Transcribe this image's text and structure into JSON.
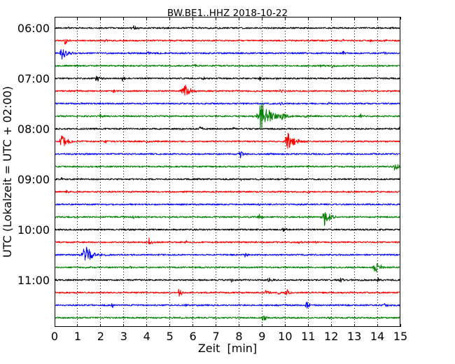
{
  "chart_data": {
    "type": "line",
    "title": "BW.BE1..HHZ 2018-10-22",
    "xlabel": "Zeit  [min]",
    "ylabel": "UTC (Lokalzeit = UTC + 02:00)",
    "xlim": [
      0,
      15
    ],
    "xticks": [
      0,
      1,
      2,
      3,
      4,
      5,
      6,
      7,
      8,
      9,
      10,
      11,
      12,
      13,
      14,
      15
    ],
    "yticks": [
      "06:00",
      "07:00",
      "08:00",
      "09:00",
      "10:00",
      "11:00"
    ],
    "grid": true,
    "series": [
      {
        "start": "06:00",
        "color": "#000000",
        "events": [
          {
            "x": 3.3,
            "amp": 0.12
          },
          {
            "x": 3.45,
            "amp": 0.3
          },
          {
            "x": 0.6,
            "amp": 0.08
          }
        ]
      },
      {
        "start": "06:15",
        "color": "#ff0000",
        "events": [
          {
            "x": 0.45,
            "amp": 0.35
          },
          {
            "x": 2.2,
            "amp": 0.14
          },
          {
            "x": 12.5,
            "amp": 0.14
          },
          {
            "x": 13.7,
            "amp": 0.12
          },
          {
            "x": 14.3,
            "amp": 0.12
          }
        ]
      },
      {
        "start": "06:30",
        "color": "#0000ff",
        "events": [
          {
            "x": 0.3,
            "amp": 0.6
          },
          {
            "x": 4.0,
            "amp": 0.2
          },
          {
            "x": 12.5,
            "amp": 0.2
          },
          {
            "x": 14.3,
            "amp": 0.12
          }
        ]
      },
      {
        "start": "06:45",
        "color": "#008000",
        "events": [
          {
            "x": 6.1,
            "amp": 0.1
          },
          {
            "x": 11.55,
            "amp": 0.18
          },
          {
            "x": 12.05,
            "amp": 0.15
          }
        ]
      },
      {
        "start": "07:00",
        "color": "#000000",
        "events": [
          {
            "x": 1.82,
            "amp": 0.35
          },
          {
            "x": 2.95,
            "amp": 0.2
          },
          {
            "x": 6.45,
            "amp": 0.15
          },
          {
            "x": 8.9,
            "amp": 0.2
          },
          {
            "x": 9.6,
            "amp": 0.14
          }
        ]
      },
      {
        "start": "07:15",
        "color": "#ff0000",
        "events": [
          {
            "x": 2.55,
            "amp": 0.2
          },
          {
            "x": 3.95,
            "amp": 0.12
          },
          {
            "x": 5.6,
            "amp": 0.72
          },
          {
            "x": 8.7,
            "amp": 0.12
          },
          {
            "x": 9.8,
            "amp": 0.2
          }
        ]
      },
      {
        "start": "07:30",
        "color": "#0000ff",
        "events": [
          {
            "x": 1.9,
            "amp": 0.12
          },
          {
            "x": 9.8,
            "amp": 0.15
          },
          {
            "x": 11.9,
            "amp": 0.1
          }
        ]
      },
      {
        "start": "07:45",
        "color": "#008000",
        "events": [
          {
            "x": 1.97,
            "amp": 0.22
          },
          {
            "x": 8.95,
            "amp": 1.35
          },
          {
            "x": 9.87,
            "amp": 0.3
          },
          {
            "x": 10.85,
            "amp": 0.12
          },
          {
            "x": 13.27,
            "amp": 0.2
          }
        ]
      },
      {
        "start": "08:00",
        "color": "#000000",
        "events": [
          {
            "x": 5.5,
            "amp": 0.1
          },
          {
            "x": 6.3,
            "amp": 0.22
          },
          {
            "x": 7.75,
            "amp": 0.22
          },
          {
            "x": 14.95,
            "amp": 0.2
          }
        ]
      },
      {
        "start": "08:15",
        "color": "#ff0000",
        "events": [
          {
            "x": 0.3,
            "amp": 0.7
          },
          {
            "x": 2.2,
            "amp": 0.12
          },
          {
            "x": 4.0,
            "amp": 0.12
          },
          {
            "x": 10.1,
            "amp": 0.88
          }
        ]
      },
      {
        "start": "08:30",
        "color": "#0000ff",
        "events": [
          {
            "x": 1.3,
            "amp": 0.1
          },
          {
            "x": 8.05,
            "amp": 0.3
          },
          {
            "x": 13.7,
            "amp": 0.12
          }
        ]
      },
      {
        "start": "08:45",
        "color": "#008000",
        "events": [
          {
            "x": 11.0,
            "amp": 0.1
          },
          {
            "x": 14.75,
            "amp": 0.45
          }
        ]
      },
      {
        "start": "09:00",
        "color": "#000000",
        "events": [
          {
            "x": 0.3,
            "amp": 0.2
          },
          {
            "x": 8.1,
            "amp": 0.12
          },
          {
            "x": 10.0,
            "amp": 0.12
          }
        ]
      },
      {
        "start": "09:15",
        "color": "#ff0000",
        "events": [
          {
            "x": 0.52,
            "amp": 0.2
          },
          {
            "x": 11.0,
            "amp": 0.15
          },
          {
            "x": 14.0,
            "amp": 0.12
          }
        ]
      },
      {
        "start": "09:30",
        "color": "#0000ff",
        "events": [
          {
            "x": 4.0,
            "amp": 0.1
          },
          {
            "x": 8.87,
            "amp": 0.1
          }
        ]
      },
      {
        "start": "09:45",
        "color": "#008000",
        "events": [
          {
            "x": 3.4,
            "amp": 0.18
          },
          {
            "x": 8.87,
            "amp": 0.25
          },
          {
            "x": 11.7,
            "amp": 0.72
          }
        ]
      },
      {
        "start": "10:00",
        "color": "#000000",
        "events": [
          {
            "x": 1.43,
            "amp": 0.12
          },
          {
            "x": 9.93,
            "amp": 0.22
          }
        ]
      },
      {
        "start": "10:15",
        "color": "#ff0000",
        "events": [
          {
            "x": 4.1,
            "amp": 0.3
          },
          {
            "x": 5.68,
            "amp": 0.15
          },
          {
            "x": 10.55,
            "amp": 0.2
          },
          {
            "x": 11.3,
            "amp": 0.12
          }
        ]
      },
      {
        "start": "10:30",
        "color": "#0000ff",
        "events": [
          {
            "x": 1.3,
            "amp": 0.9
          },
          {
            "x": 6.75,
            "amp": 0.1
          },
          {
            "x": 8.26,
            "amp": 0.2
          }
        ]
      },
      {
        "start": "10:45",
        "color": "#008000",
        "events": [
          {
            "x": 1.3,
            "amp": 0.12
          },
          {
            "x": 3.3,
            "amp": 0.2
          },
          {
            "x": 13.9,
            "amp": 0.58
          }
        ]
      },
      {
        "start": "11:00",
        "color": "#000000",
        "events": [
          {
            "x": 7.65,
            "amp": 0.2
          },
          {
            "x": 9.27,
            "amp": 0.22
          },
          {
            "x": 12.4,
            "amp": 0.25
          },
          {
            "x": 14.03,
            "amp": 0.2
          }
        ]
      },
      {
        "start": "11:15",
        "color": "#ff0000",
        "events": [
          {
            "x": 5.4,
            "amp": 0.35
          },
          {
            "x": 9.17,
            "amp": 0.22
          },
          {
            "x": 9.7,
            "amp": 0.18
          },
          {
            "x": 10.08,
            "amp": 0.3
          }
        ]
      },
      {
        "start": "11:30",
        "color": "#0000ff",
        "events": [
          {
            "x": 2.5,
            "amp": 0.2
          },
          {
            "x": 5.68,
            "amp": 0.1
          },
          {
            "x": 10.9,
            "amp": 0.35
          },
          {
            "x": 14.33,
            "amp": 0.2
          }
        ]
      },
      {
        "start": "11:45",
        "color": "#008000",
        "events": [
          {
            "x": 9.05,
            "amp": 0.3
          },
          {
            "x": 11.9,
            "amp": 0.1
          }
        ]
      }
    ]
  }
}
